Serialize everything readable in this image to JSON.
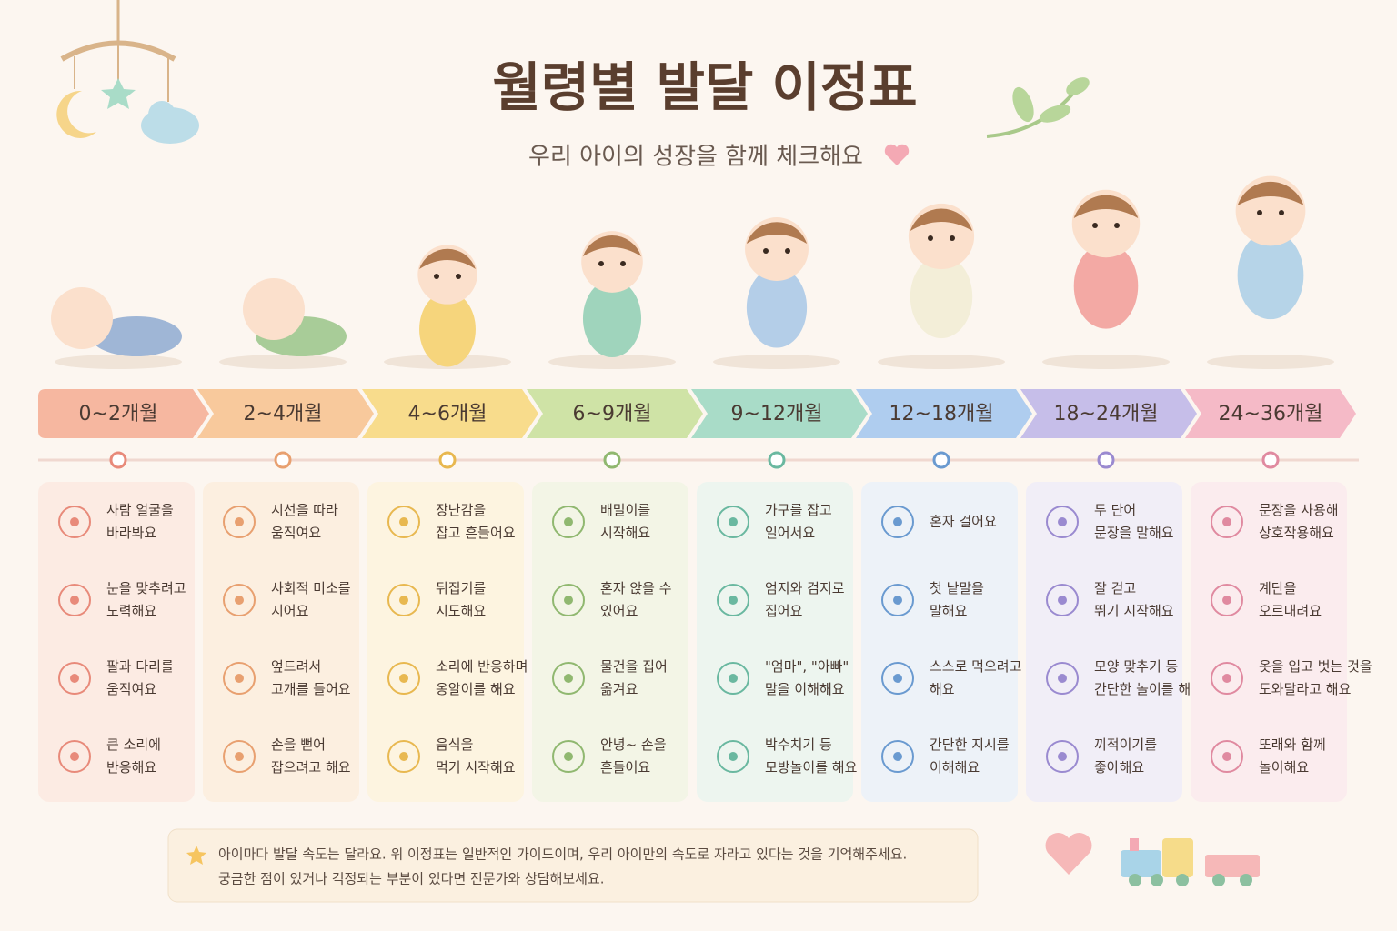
{
  "header": {
    "title": "월령별 발달 이정표",
    "subtitle": "우리 아이의 성장을 함께 체크해요"
  },
  "stages": [
    {
      "label": "0~2개월",
      "items": [
        [
          "사람 얼굴을",
          "바라봐요"
        ],
        [
          "눈을 맞추려고",
          "노력해요"
        ],
        [
          "팔과 다리를",
          "움직여요"
        ],
        [
          "큰 소리에",
          "반응해요"
        ]
      ]
    },
    {
      "label": "2~4개월",
      "items": [
        [
          "시선을 따라",
          "움직여요"
        ],
        [
          "사회적 미소를",
          "지어요"
        ],
        [
          "엎드려서",
          "고개를 들어요"
        ],
        [
          "손을 뻗어",
          "잡으려고 해요"
        ]
      ]
    },
    {
      "label": "4~6개월",
      "items": [
        [
          "장난감을",
          "잡고 흔들어요"
        ],
        [
          "뒤집기를",
          "시도해요"
        ],
        [
          "소리에 반응하며",
          "옹알이를 해요"
        ],
        [
          "음식을",
          "먹기 시작해요"
        ]
      ]
    },
    {
      "label": "6~9개월",
      "items": [
        [
          "배밀이를",
          "시작해요"
        ],
        [
          "혼자 앉을 수",
          "있어요"
        ],
        [
          "물건을 집어",
          "옮겨요"
        ],
        [
          "안녕~ 손을",
          "흔들어요"
        ]
      ]
    },
    {
      "label": "9~12개월",
      "items": [
        [
          "가구를 잡고",
          "일어서요"
        ],
        [
          "엄지와 검지로",
          "집어요"
        ],
        [
          "\"엄마\", \"아빠\"",
          "말을 이해해요"
        ],
        [
          "박수치기 등",
          "모방놀이를 해요"
        ]
      ]
    },
    {
      "label": "12~18개월",
      "items": [
        [
          "혼자 걸어요"
        ],
        [
          "첫 낱말을",
          "말해요"
        ],
        [
          "스스로 먹으려고",
          "해요"
        ],
        [
          "간단한 지시를",
          "이해해요"
        ]
      ]
    },
    {
      "label": "18~24개월",
      "items": [
        [
          "두 단어",
          "문장을 말해요"
        ],
        [
          "잘 걷고",
          "뛰기 시작해요"
        ],
        [
          "모양 맞추기 등",
          "간단한 놀이를 해요"
        ],
        [
          "끼적이기를",
          "좋아해요"
        ]
      ]
    },
    {
      "label": "24~36개월",
      "items": [
        [
          "문장을 사용해",
          "상호작용해요"
        ],
        [
          "계단을",
          "오르내려요"
        ],
        [
          "옷을 입고 벗는 것을",
          "도와달라고 해요"
        ],
        [
          "또래와 함께",
          "놀이해요"
        ]
      ]
    }
  ],
  "footer": {
    "lines": [
      "아이마다 발달 속도는 달라요. 위 이정표는 일반적인 가이드이며, 우리 아이만의 속도로 자라고 있다는 것을 기억해주세요.",
      "궁금한 점이 있거나 걱정되는 부분이 있다면 전문가와 상담해보세요."
    ]
  }
}
